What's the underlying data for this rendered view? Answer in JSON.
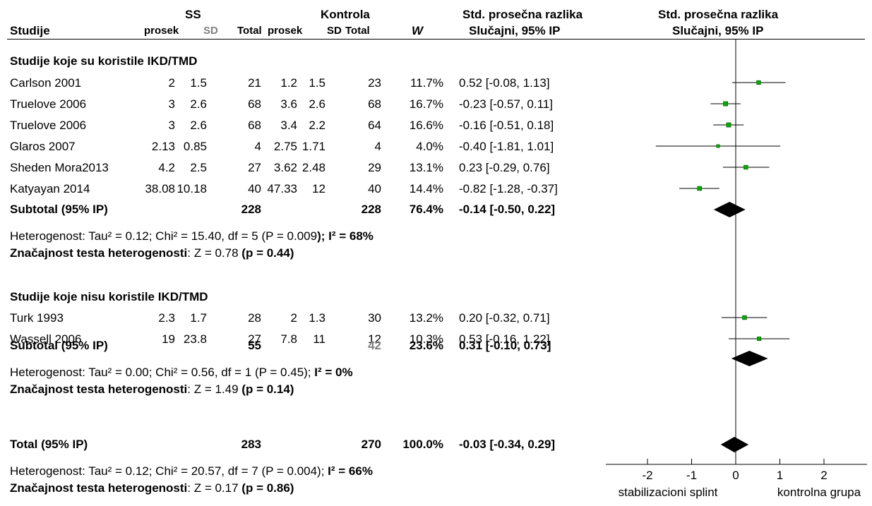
{
  "header": {
    "group_ss": "SS",
    "group_kontrola": "Kontrola",
    "col_effect_title": "Std. prosečna razlika",
    "col_effect_method": "Slučajni, 95% IP",
    "plot_title": "Std. prosečna razlika",
    "plot_method": "Slučajni, 95% IP",
    "studije": "Studije",
    "prosek": "prosek",
    "sd": "SD",
    "total": "Total",
    "w": "W"
  },
  "groups": [
    {
      "title": "Studije koje su koristile IKD/TMD",
      "studies": [
        {
          "name": "Carlson 2001",
          "m1": "2",
          "sd1": "1.5",
          "n1": "21",
          "m2": "1.2",
          "sd2": "1.5",
          "n2": "23",
          "w": "11.7%",
          "ci": "0.52 [-0.08, 1.13]"
        },
        {
          "name": "Truelove 2006",
          "m1": "3",
          "sd1": "2.6",
          "n1": "68",
          "m2": "3.6",
          "sd2": "2.6",
          "n2": "68",
          "w": "16.7%",
          "ci": "-0.23 [-0.57, 0.11]"
        },
        {
          "name": "Truelove 2006",
          "m1": "3",
          "sd1": "2.6",
          "n1": "68",
          "m2": "3.4",
          "sd2": "2.2",
          "n2": "64",
          "w": "16.6%",
          "ci": "-0.16 [-0.51, 0.18]"
        },
        {
          "name": "Glaros 2007",
          "m1": "2.13",
          "sd1": "0.85",
          "n1": "4",
          "m2": "2.75",
          "sd2": "1.71",
          "n2": "4",
          "w": "4.0%",
          "ci": "-0.40 [-1.81, 1.01]"
        },
        {
          "name": "Sheden Mora2013",
          "m1": "4.2",
          "sd1": "2.5",
          "n1": "27",
          "m2": "3.62",
          "sd2": "2.48",
          "n2": "29",
          "w": "13.1%",
          "ci": "0.23 [-0.29, 0.76]"
        },
        {
          "name": "Katyayan 2014",
          "m1": "38.08",
          "sd1": "10.18",
          "n1": "40",
          "m2": "47.33",
          "sd2": "12",
          "n2": "40",
          "w": "14.4%",
          "ci": "-0.82 [-1.28, -0.37]"
        }
      ],
      "subtotal": {
        "label": "Subtotal (95% IP)",
        "n1": "228",
        "n2": "228",
        "w": "76.4%",
        "ci": "-0.14 [-0.50, 0.22]"
      },
      "het_plain": "Heterogenost: Tau² = 0.12; Chi² = 15.40, df = 5 (P = 0.009",
      "het_bold": "); I² = 68%",
      "test_bold1": "Značajnost testa heterogenosti",
      "test_plain": ": Z = 0.78 ",
      "test_bold2": "(p = 0.44)"
    },
    {
      "title": "Studije koje nisu koristile IKD/TMD",
      "studies": [
        {
          "name": "Turk 1993",
          "m1": "2.3",
          "sd1": "1.7",
          "n1": "28",
          "m2": "2",
          "sd2": "1.3",
          "n2": "30",
          "w": "13.2%",
          "ci": "0.20 [-0.32, 0.71]"
        },
        {
          "name": "Wassell 2006",
          "m1": "19",
          "sd1": "23.8",
          "n1": "27",
          "m2": "7.8",
          "sd2": "11",
          "n2": "12",
          "w": "10.3%",
          "ci": "0.53 [-0.16, 1.22]"
        }
      ],
      "subtotal": {
        "label": "Subtotal (95% IP)",
        "n1": "55",
        "n2": "42",
        "w": "23.6%",
        "ci": "0.31 [-0.10, 0.73]"
      },
      "het_plain": "Heterogenost: Tau² = 0.00; Chi² = 0.56, df = 1 (P = 0.45); ",
      "het_bold": "I² = 0%",
      "test_bold1": "Značajnost testa heterogenosti",
      "test_plain": ": Z = 1.49 ",
      "test_bold2": "(p = 0.14)"
    }
  ],
  "total": {
    "label": "Total (95% IP)",
    "n1": "283",
    "n2": "270",
    "w": "100.0%",
    "ci": "-0.03 [-0.34, 0.29]",
    "het_plain": "Heterogenost: Tau² = 0.12; Chi² = 20.57, df = 7 (P = 0.004); ",
    "het_bold": "I² = 66%",
    "test_bold1": "Značajnost testa heterogenosti",
    "test_plain": ": Z = 0.17 ",
    "test_bold2": "(p = 0.86)"
  },
  "axis": {
    "ticks": [
      "-2",
      "-1",
      "0",
      "1",
      "2"
    ],
    "label_left": "stabilizacioni splint",
    "label_right": "kontrolna grupa"
  },
  "chart_data": {
    "type": "forest",
    "xlim": [
      -2.5,
      2.5
    ],
    "xticks": [
      -2,
      -1,
      0,
      1,
      2
    ],
    "square_color": "#00b000",
    "series": [
      {
        "name": "Carlson 2001",
        "estimate": 0.52,
        "lower": -0.08,
        "upper": 1.13,
        "weight": 11.7
      },
      {
        "name": "Truelove 2006",
        "estimate": -0.23,
        "lower": -0.57,
        "upper": 0.11,
        "weight": 16.7
      },
      {
        "name": "Truelove 2006",
        "estimate": -0.16,
        "lower": -0.51,
        "upper": 0.18,
        "weight": 16.6
      },
      {
        "name": "Glaros 2007",
        "estimate": -0.4,
        "lower": -1.81,
        "upper": 1.01,
        "weight": 4.0
      },
      {
        "name": "Sheden Mora2013",
        "estimate": 0.23,
        "lower": -0.29,
        "upper": 0.76,
        "weight": 13.1
      },
      {
        "name": "Katyayan 2014",
        "estimate": -0.82,
        "lower": -1.28,
        "upper": -0.37,
        "weight": 14.4
      },
      {
        "name": "Subtotal (95% IP)",
        "estimate": -0.14,
        "lower": -0.5,
        "upper": 0.22,
        "weight": 76.4,
        "diamond": true
      },
      {
        "name": "Turk 1993",
        "estimate": 0.2,
        "lower": -0.32,
        "upper": 0.71,
        "weight": 13.2
      },
      {
        "name": "Wassell 2006",
        "estimate": 0.53,
        "lower": -0.16,
        "upper": 1.22,
        "weight": 10.3
      },
      {
        "name": "Subtotal (95% IP)",
        "estimate": 0.31,
        "lower": -0.1,
        "upper": 0.73,
        "weight": 23.6,
        "diamond": true
      },
      {
        "name": "Total (95% IP)",
        "estimate": -0.03,
        "lower": -0.34,
        "upper": 0.29,
        "weight": 100.0,
        "diamond": true
      }
    ]
  }
}
